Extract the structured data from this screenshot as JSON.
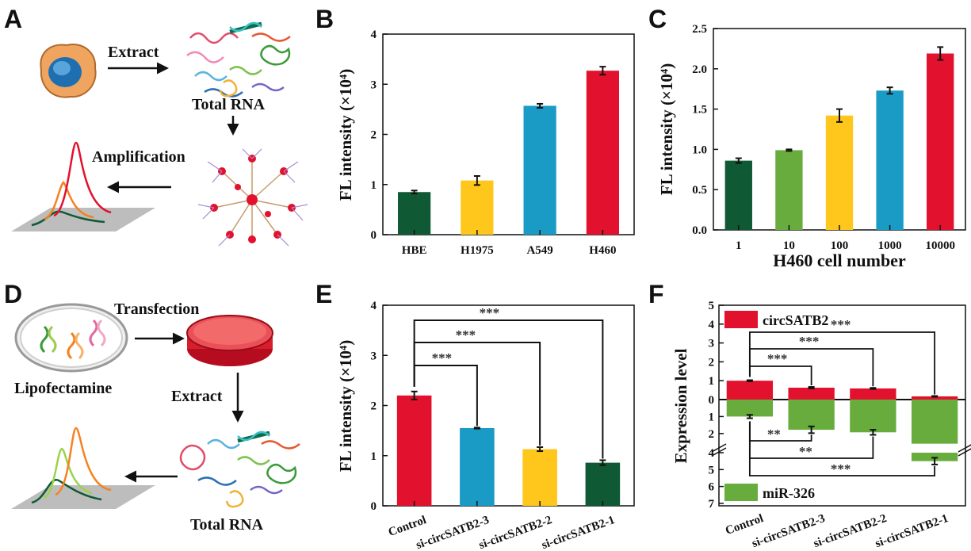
{
  "panels": {
    "a": {
      "letter": "A",
      "step1": "Extract",
      "step2": "Total RNA",
      "step3": "Amplification"
    },
    "d": {
      "letter": "D",
      "step1": "Transfection",
      "lipo": "Lipofectamine",
      "step2": "Extract",
      "step3": "Total RNA"
    }
  },
  "chart_data": [
    {
      "panel": "B",
      "type": "bar",
      "categories": [
        "HBE",
        "H1975",
        "A549",
        "H460"
      ],
      "values": [
        0.85,
        1.08,
        2.57,
        3.27
      ],
      "errors": [
        0.03,
        0.09,
        0.04,
        0.08
      ],
      "colors": [
        "#0f5a35",
        "#ffc61c",
        "#199bc6",
        "#e2112e"
      ],
      "ylabel": "FL intensity (×10⁴)",
      "xlabel": "",
      "ylim": [
        0,
        4
      ],
      "yticks": [
        "0",
        "1",
        "2",
        "3",
        "4"
      ]
    },
    {
      "panel": "C",
      "type": "bar",
      "categories": [
        "1",
        "10",
        "100",
        "1000",
        "10000"
      ],
      "values": [
        0.86,
        0.99,
        1.42,
        1.73,
        2.19
      ],
      "errors": [
        0.03,
        0.01,
        0.08,
        0.04,
        0.08
      ],
      "colors": [
        "#0f5a35",
        "#67ac3c",
        "#ffc61c",
        "#199bc6",
        "#e2112e"
      ],
      "ylabel": "FL intensity (×10⁴)",
      "xlabel": "H460 cell number",
      "ylim": [
        0,
        2.5
      ],
      "yticks": [
        "0.0",
        "0.5",
        "1.0",
        "1.5",
        "2.0",
        "2.5"
      ]
    },
    {
      "panel": "E",
      "type": "bar",
      "categories": [
        "Control",
        "si-circSATB2-3",
        "si-circSATB2-2",
        "si-circSATB2-1"
      ],
      "values": [
        2.2,
        1.55,
        1.13,
        0.86
      ],
      "errors": [
        0.08,
        0.01,
        0.04,
        0.05
      ],
      "colors": [
        "#e2112e",
        "#199bc6",
        "#ffc61c",
        "#0f5a35"
      ],
      "ylabel": "FL intensity (×10⁴)",
      "xlabel": "",
      "ylim": [
        0,
        4
      ],
      "yticks": [
        "0",
        "1",
        "2",
        "3",
        "4"
      ],
      "significance": [
        "***",
        "***",
        "***"
      ]
    },
    {
      "panel": "F",
      "type": "bar",
      "categories": [
        "Control",
        "si-circSATB2-3",
        "si-circSATB2-2",
        "si-circSATB2-1"
      ],
      "series": [
        {
          "name": "circSATB2",
          "color": "#e2112e",
          "values": [
            1.0,
            0.63,
            0.59,
            0.17
          ],
          "errors": [
            0.03,
            0.04,
            0.03,
            0.02
          ]
        },
        {
          "name": "miR-326",
          "color": "#67ac3c",
          "values": [
            1.0,
            1.78,
            1.93,
            4.5
          ],
          "errors": [
            0.1,
            0.2,
            0.15,
            0.2
          ]
        }
      ],
      "ylabel": "Expression level",
      "xlabel": "",
      "yticks_up": [
        "0",
        "1",
        "2",
        "3",
        "4",
        "5"
      ],
      "yticks_down": [
        "1",
        "2",
        "4",
        "5",
        "6",
        "7"
      ],
      "significance_up": [
        "***",
        "***",
        "***"
      ],
      "significance_down": [
        "**",
        "**",
        "***"
      ]
    }
  ]
}
